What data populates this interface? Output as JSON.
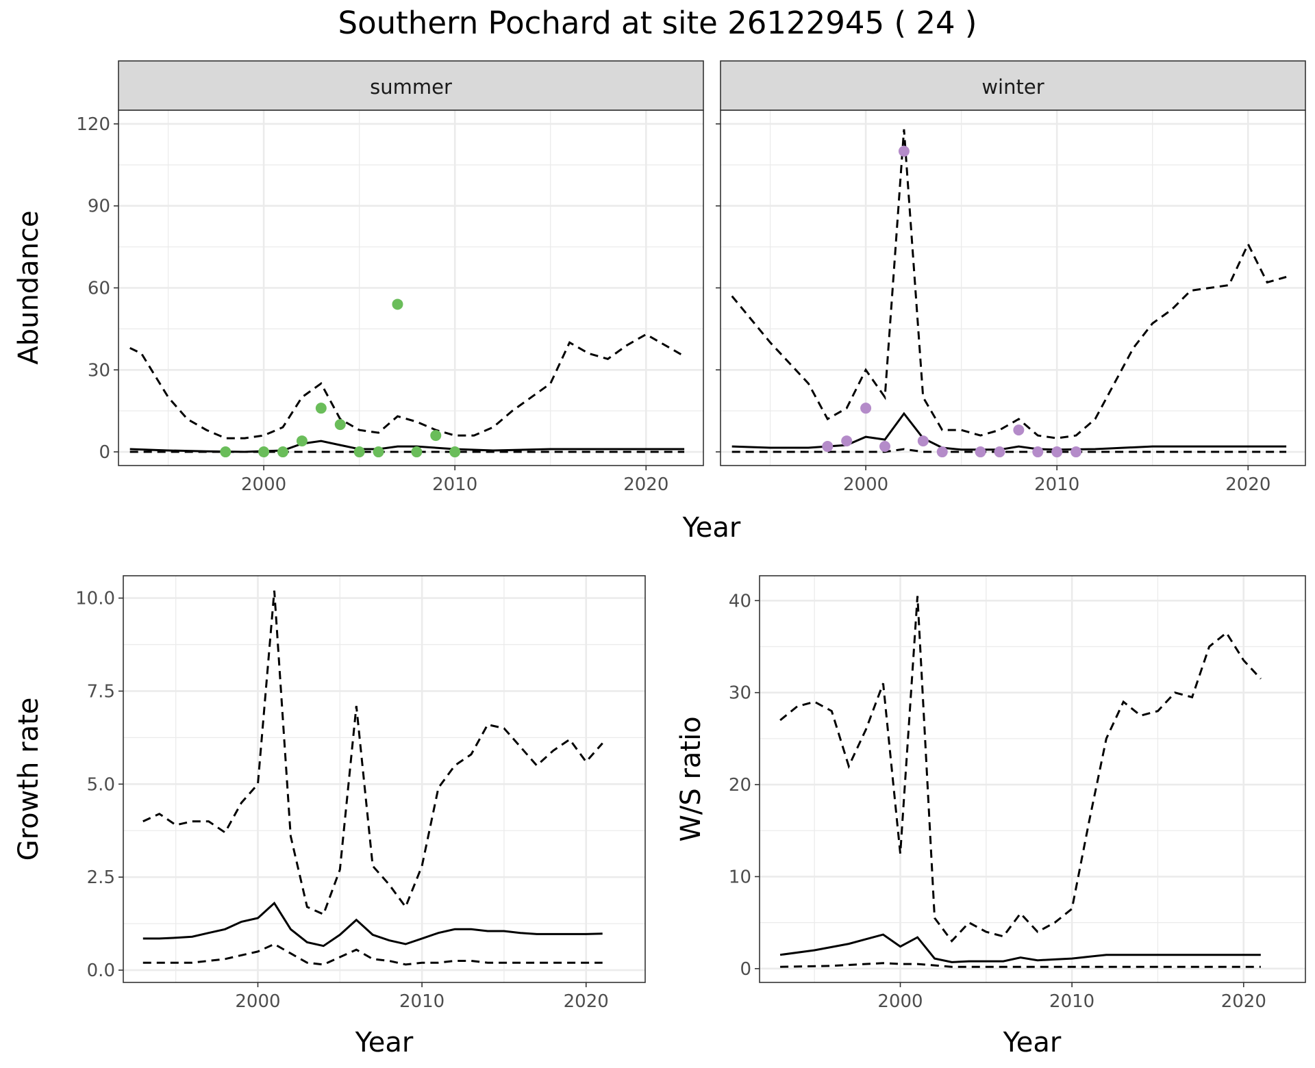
{
  "title": "Southern Pochard at site 26122945 ( 24 )",
  "colors": {
    "summer_points": "#6abd5a",
    "winter_points": "#b48bc9"
  },
  "chart_data": [
    {
      "type": "line",
      "facet": "summer",
      "xlabel": "Year",
      "ylabel": "Abundance",
      "xlim": [
        1992.4,
        2023.0
      ],
      "ylim": [
        -5,
        125
      ],
      "xticks": [
        2000,
        2010,
        2020
      ],
      "yticks": [
        0,
        30,
        60,
        90,
        120
      ],
      "grid": true,
      "series": [
        {
          "style": "solid",
          "x": [
            1993,
            1995,
            1997,
            1999,
            2001,
            2002,
            2003,
            2004,
            2005,
            2006,
            2007,
            2008,
            2010,
            2012,
            2015,
            2017,
            2019,
            2022
          ],
          "y": [
            1,
            0.5,
            0.2,
            0,
            0.5,
            3,
            4,
            2.5,
            1,
            1,
            2,
            2,
            1,
            0.5,
            1,
            1,
            1,
            1
          ]
        },
        {
          "style": "dashed",
          "x": [
            1993,
            1993.6,
            1995,
            1996,
            1997,
            1998,
            1999,
            2000,
            2001,
            2002,
            2003,
            2004,
            2005,
            2006,
            2007,
            2008,
            2009,
            2010,
            2011,
            2012,
            2013,
            2014,
            2015,
            2016,
            2017,
            2018,
            2019,
            2020,
            2021,
            2022
          ],
          "y": [
            38,
            36,
            20,
            12,
            8,
            5,
            5,
            6,
            9,
            20,
            25,
            12,
            8,
            7,
            13,
            11,
            8,
            6,
            6,
            9,
            15,
            20,
            25,
            40,
            36,
            34,
            39,
            43,
            39,
            35
          ]
        },
        {
          "style": "dashed",
          "x": [
            1993,
            2022
          ],
          "y": [
            0,
            0
          ]
        }
      ],
      "points": {
        "x": [
          1998,
          2000,
          2001,
          2002,
          2003,
          2004,
          2005,
          2006,
          2007,
          2008,
          2009,
          2010
        ],
        "y": [
          0,
          0,
          0,
          4,
          16,
          10,
          0,
          0,
          54,
          0,
          6,
          0
        ]
      }
    },
    {
      "type": "line",
      "facet": "winter",
      "xlabel": "Year",
      "ylabel": "Abundance",
      "xlim": [
        1992.4,
        2023.0
      ],
      "ylim": [
        -5,
        125
      ],
      "xticks": [
        2000,
        2010,
        2020
      ],
      "yticks": [
        0,
        30,
        60,
        90,
        120
      ],
      "grid": true,
      "series": [
        {
          "style": "solid",
          "x": [
            1993,
            1995,
            1997,
            1999,
            2000,
            2001,
            2002,
            2003,
            2004,
            2005,
            2006,
            2007,
            2008,
            2009,
            2010,
            2012,
            2015,
            2017,
            2020,
            2022
          ],
          "y": [
            2,
            1.5,
            1.5,
            2.5,
            5.5,
            4.5,
            14,
            5,
            1.5,
            0.8,
            0.8,
            0.8,
            2,
            1,
            0.8,
            1,
            2,
            2,
            2,
            2
          ]
        },
        {
          "style": "dashed",
          "x": [
            1993,
            1995,
            1997,
            1998,
            1999,
            2000,
            2001,
            2002,
            2003,
            2004,
            2005,
            2006,
            2007,
            2008,
            2009,
            2010,
            2011,
            2012,
            2013,
            2014,
            2015,
            2016,
            2017,
            2018,
            2019,
            2020,
            2021,
            2022
          ],
          "y": [
            57,
            40,
            25,
            12,
            16,
            30,
            20,
            118,
            20,
            8,
            8,
            6,
            8,
            12,
            6,
            5,
            6,
            12,
            25,
            38,
            47,
            52,
            59,
            60,
            61,
            76,
            62,
            64
          ]
        },
        {
          "style": "dashed",
          "x": [
            1993,
            2001,
            2002,
            2003,
            2022
          ],
          "y": [
            0,
            0,
            1,
            0,
            0
          ]
        }
      ],
      "points": {
        "x": [
          1998,
          1999,
          2000,
          2001,
          2002,
          2003,
          2004,
          2006,
          2007,
          2008,
          2009,
          2010,
          2011
        ],
        "y": [
          2,
          4,
          16,
          2,
          110,
          4,
          0,
          0,
          0,
          8,
          0,
          0,
          0
        ]
      }
    },
    {
      "type": "line",
      "xlabel": "Year",
      "ylabel": "Growth rate",
      "xlim": [
        1991.8,
        2023.6
      ],
      "ylim": [
        -0.33,
        10.6
      ],
      "xticks": [
        2000,
        2010,
        2020
      ],
      "yticks": [
        0.0,
        2.5,
        5.0,
        7.5,
        10.0
      ],
      "yticklabels": [
        "0.0",
        "2.5",
        "5.0",
        "7.5",
        "10.0"
      ],
      "grid": true,
      "series": [
        {
          "style": "solid",
          "x": [
            1993,
            1994,
            1995,
            1996,
            1997,
            1998,
            1999,
            2000,
            2001,
            2002,
            2003,
            2004,
            2005,
            2006,
            2007,
            2008,
            2009,
            2010,
            2011,
            2012,
            2013,
            2014,
            2015,
            2016,
            2017,
            2018,
            2019,
            2020,
            2021
          ],
          "y": [
            0.85,
            0.85,
            0.87,
            0.9,
            1.0,
            1.1,
            1.3,
            1.4,
            1.8,
            1.1,
            0.75,
            0.65,
            0.95,
            1.35,
            0.95,
            0.8,
            0.7,
            0.85,
            1.0,
            1.1,
            1.1,
            1.05,
            1.05,
            1.0,
            0.97,
            0.97,
            0.97,
            0.97,
            0.98
          ]
        },
        {
          "style": "dashed",
          "x": [
            1993,
            1994,
            1995,
            1996,
            1997,
            1998,
            1999,
            2000,
            2001,
            2002,
            2003,
            2004,
            2005,
            2006,
            2007,
            2008,
            2009,
            2010,
            2011,
            2012,
            2013,
            2014,
            2015,
            2016,
            2017,
            2018,
            2019,
            2020,
            2021
          ],
          "y": [
            4.0,
            4.2,
            3.9,
            4.0,
            4.0,
            3.7,
            4.5,
            5.0,
            10.2,
            3.6,
            1.7,
            1.5,
            2.7,
            7.1,
            2.8,
            2.3,
            1.7,
            2.8,
            4.9,
            5.5,
            5.8,
            6.6,
            6.5,
            6.0,
            5.5,
            5.9,
            6.2,
            5.6,
            6.1
          ]
        },
        {
          "style": "dashed",
          "x": [
            1993,
            1994,
            1995,
            1996,
            1997,
            1998,
            1999,
            2000,
            2001,
            2002,
            2003,
            2004,
            2005,
            2006,
            2007,
            2008,
            2009,
            2010,
            2011,
            2012,
            2013,
            2014,
            2015,
            2016,
            2017,
            2018,
            2019,
            2020,
            2021
          ],
          "y": [
            0.2,
            0.2,
            0.2,
            0.2,
            0.25,
            0.3,
            0.4,
            0.5,
            0.7,
            0.45,
            0.2,
            0.15,
            0.35,
            0.55,
            0.3,
            0.25,
            0.15,
            0.2,
            0.2,
            0.25,
            0.25,
            0.2,
            0.2,
            0.2,
            0.2,
            0.2,
            0.2,
            0.2,
            0.2
          ]
        }
      ]
    },
    {
      "type": "line",
      "xlabel": "Year",
      "ylabel": "W/S ratio",
      "xlim": [
        1991.8,
        2023.6
      ],
      "ylim": [
        -1.5,
        42.7
      ],
      "xticks": [
        2000,
        2010,
        2020
      ],
      "yticks": [
        0,
        10,
        20,
        30,
        40
      ],
      "grid": true,
      "series": [
        {
          "style": "solid",
          "x": [
            1993,
            1995,
            1997,
            1998,
            1999,
            2000,
            2001,
            2002,
            2003,
            2004,
            2005,
            2006,
            2007,
            2008,
            2009,
            2010,
            2011,
            2012,
            2014,
            2016,
            2018,
            2021
          ],
          "y": [
            1.5,
            2.0,
            2.7,
            3.2,
            3.7,
            2.4,
            3.4,
            1.1,
            0.7,
            0.8,
            0.8,
            0.8,
            1.2,
            0.9,
            1.0,
            1.1,
            1.3,
            1.5,
            1.5,
            1.5,
            1.5,
            1.5
          ]
        },
        {
          "style": "dashed",
          "x": [
            1993,
            1994,
            1995,
            1996,
            1997,
            1998,
            1999,
            2000,
            2001,
            2002,
            2003,
            2004,
            2005,
            2006,
            2007,
            2008,
            2009,
            2010,
            2011,
            2012,
            2013,
            2014,
            2015,
            2016,
            2017,
            2018,
            2019,
            2020,
            2021
          ],
          "y": [
            27,
            28.5,
            29,
            28,
            22,
            26,
            31,
            12.5,
            40.5,
            5.5,
            3,
            5,
            4,
            3.5,
            6,
            4,
            5,
            6.5,
            16,
            25,
            29,
            27.5,
            28,
            30,
            29.5,
            35,
            36.5,
            33.5,
            31.5
          ]
        },
        {
          "style": "dashed",
          "x": [
            1993,
            1996,
            1999,
            2000,
            2001,
            2003,
            2010,
            2021
          ],
          "y": [
            0.2,
            0.3,
            0.6,
            0.5,
            0.5,
            0.2,
            0.2,
            0.2
          ]
        }
      ]
    }
  ]
}
